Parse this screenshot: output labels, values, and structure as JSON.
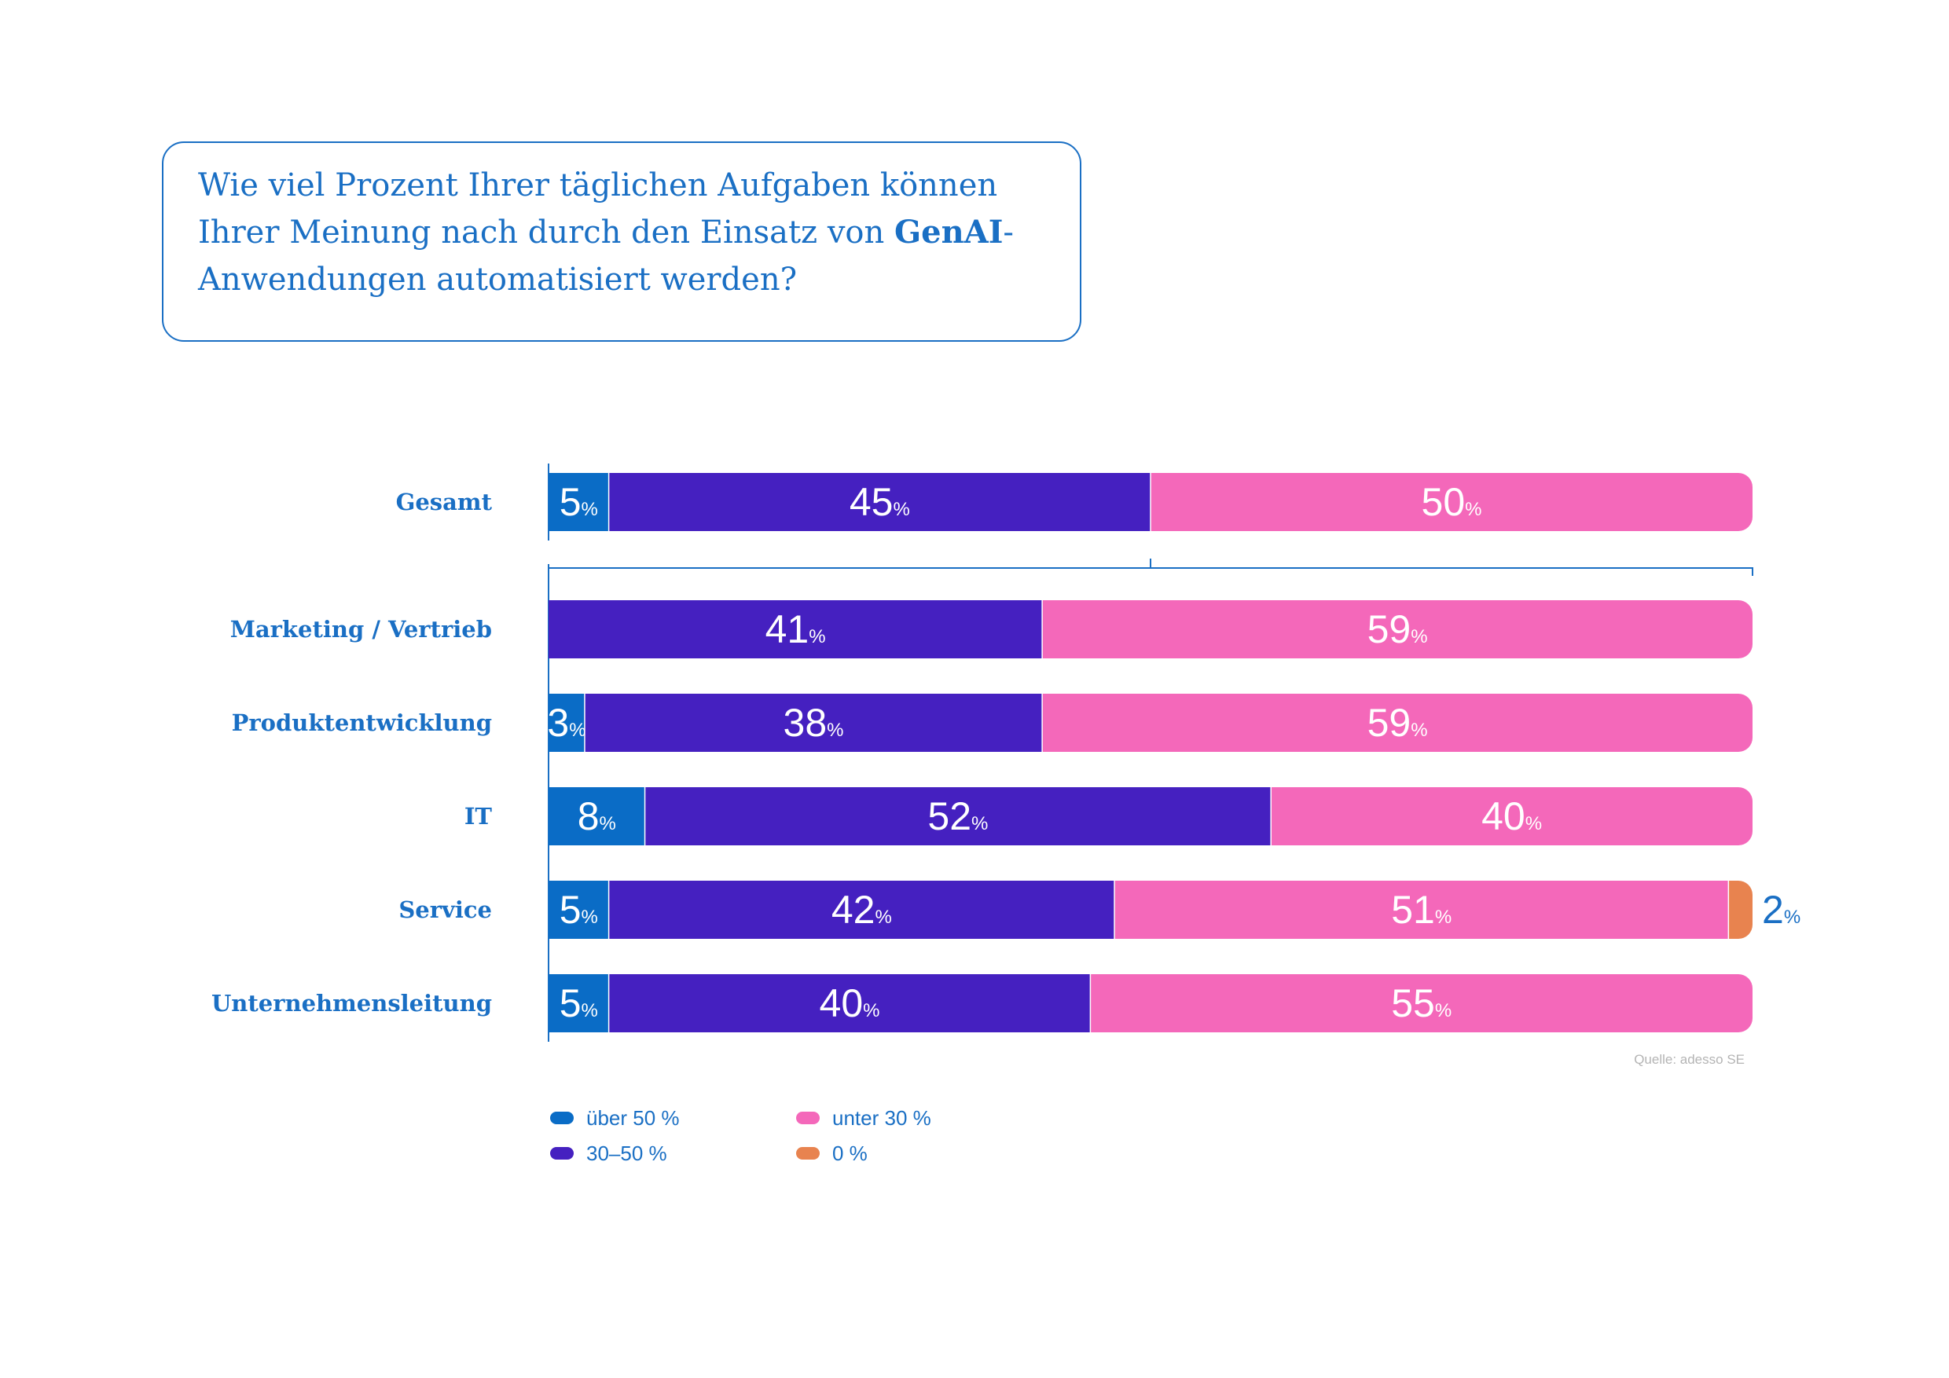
{
  "question": {
    "part1": "Wie viel Prozent Ihrer täglichen Aufgaben können Ihrer Meinung nach durch den Einsatz von ",
    "bold": "GenAI",
    "part2": "-Anwendungen automatisiert werden?"
  },
  "colors": {
    "over50": "#0a6cc6",
    "mid": "#4520c0",
    "under30": "#f468ba",
    "zero": "#e8834f",
    "text": "#1a6fc4"
  },
  "chart_data": {
    "type": "bar",
    "orientation": "horizontal-stacked",
    "xlim": [
      0,
      100
    ],
    "categories": [
      "Gesamt",
      "Marketing / Vertrieb",
      "Produktentwicklung",
      "IT",
      "Service",
      "Unternehmensleitung"
    ],
    "series": [
      {
        "name": "über 50 %",
        "color": "#0a6cc6",
        "values": [
          5,
          0,
          3,
          8,
          5,
          5
        ]
      },
      {
        "name": "30–50 %",
        "color": "#4520c0",
        "values": [
          45,
          41,
          38,
          52,
          42,
          40
        ]
      },
      {
        "name": "unter 30 %",
        "color": "#f468ba",
        "values": [
          50,
          59,
          59,
          40,
          51,
          55
        ]
      },
      {
        "name": "0 %",
        "color": "#e8834f",
        "values": [
          0,
          0,
          0,
          0,
          2,
          0
        ]
      }
    ],
    "value_suffix": "%",
    "legend": "bottom-left",
    "grid": false
  },
  "source": "Quelle: adesso SE"
}
